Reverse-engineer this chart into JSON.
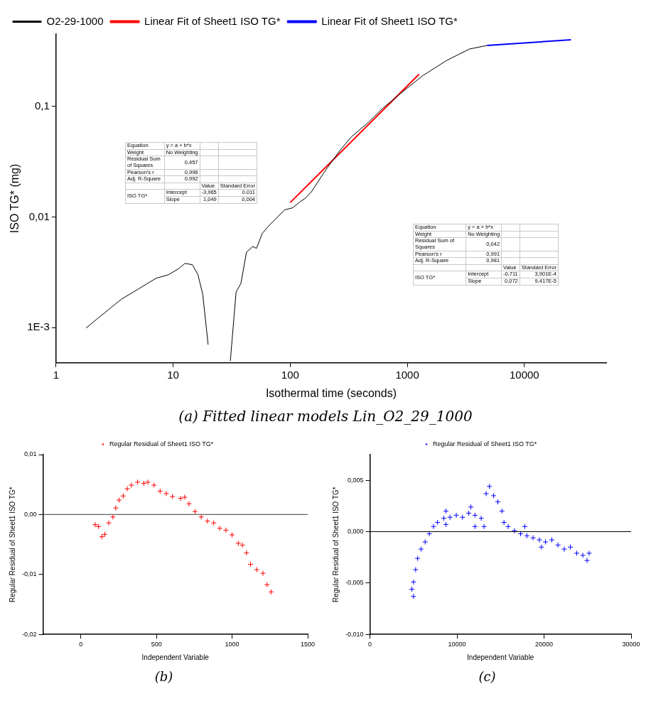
{
  "chart_data": [
    {
      "type": "line",
      "title": "(a) Fitted linear models Lin_O2_29_1000",
      "xlabel": "Isothermal time (seconds)",
      "ylabel": "ISO TG* (mg)",
      "log": "xy",
      "legend": "top left",
      "xlim": [
        1,
        50000
      ],
      "xticks": [
        1,
        10,
        100,
        1000,
        10000
      ],
      "ylim": [
        0.00048,
        0.45
      ],
      "yticks": [
        {
          "value": 0.001,
          "label": "1E-3"
        },
        {
          "value": 0.01,
          "label": "0,01"
        },
        {
          "value": 0.1,
          "label": "0,1"
        }
      ],
      "series": [
        {
          "name": "O2-29-1000",
          "color": "#000000",
          "x": [
            1.8,
            3.6,
            7.2,
            9.1,
            11.1,
            12.6,
            14.6,
            16.3,
            17.9,
            19.9,
            25,
            30.8,
            33.2,
            34.5,
            37.9,
            42.3,
            47.9,
            51.5,
            57.7,
            65.5,
            74.4,
            89.5,
            105,
            120,
            135,
            152,
            172,
            190,
            223,
            264,
            333,
            454,
            623,
            916,
            1360,
            2170,
            3400,
            4800
          ],
          "values": [
            0.00099,
            0.0018,
            0.0028,
            0.003,
            0.0034,
            0.0038,
            0.0037,
            0.003,
            0.002,
            0.0007,
            null,
            0.0005,
            0.0013,
            0.0021,
            0.0025,
            0.0048,
            0.0054,
            0.0052,
            0.0071,
            0.0083,
            0.0095,
            0.0116,
            0.0121,
            0.0136,
            0.0148,
            0.0169,
            0.0207,
            0.0243,
            0.031,
            0.0395,
            0.053,
            0.07,
            0.097,
            0.136,
            0.19,
            0.26,
            0.33,
            0.355
          ]
        },
        {
          "name": "Linear Fit of Sheet1 ISO TG*",
          "color": "#ff0000",
          "x": [
            100,
            1260
          ],
          "values": [
            0.0135,
            0.195
          ]
        },
        {
          "name": "Linear Fit of Sheet1 ISO TG*",
          "color": "#0000ff",
          "x": [
            4800,
            25000
          ],
          "values": [
            0.355,
            0.4
          ]
        }
      ],
      "annotations": [
        "Equation",
        "y = a + b*x",
        "Weight",
        "No Weighting",
        "Residual Sum of Squares",
        "0,457",
        "Pearson's r",
        "0,996",
        "Adj. R-Square",
        "0,992",
        "Value",
        "Standard Error",
        "ISO TG*",
        "Intercept",
        "-3,965",
        "0,011",
        "Slope",
        "1,049",
        "0,004",
        "Equation",
        "y = a + b*x",
        "Weight",
        "No Weighting",
        "Residual Sum of Squares",
        "0,042",
        "Pearson's r",
        "0,991",
        "Adj. R-Square",
        "0,981",
        "Value",
        "Standard Error",
        "ISO TG*",
        "Intercept",
        "-0,711",
        "3,901E-4",
        "Slope",
        "0,072",
        "9,417E-5"
      ]
    },
    {
      "type": "scatter",
      "title": "(b)",
      "xlabel": "Independent Variable",
      "ylabel": "Regular Residual of Sheet1 ISO TG*",
      "legend": "top",
      "marker": "cross",
      "xlim": [
        -250,
        1500
      ],
      "xticks": [
        0,
        500,
        1000,
        1500
      ],
      "ylim": [
        -0.02,
        0.01
      ],
      "yticks": [
        {
          "value": -0.02,
          "label": "-0,02"
        },
        {
          "value": -0.01,
          "label": "-0,01"
        },
        {
          "value": 0,
          "label": "0,00"
        },
        {
          "value": 0.01,
          "label": "0,01"
        }
      ],
      "ref_lines": [
        {
          "axis": "y",
          "value": 0,
          "color": "#606060"
        }
      ],
      "series": [
        {
          "name": "Regular Residual of Sheet1 ISO TG*",
          "color": "#ff0000",
          "x": [
            95,
            117,
            139,
            158,
            185,
            212,
            231,
            253,
            280,
            307,
            334,
            375,
            416,
            443,
            484,
            524,
            565,
            606,
            660,
            687,
            715,
            755,
            796,
            837,
            878,
            918,
            959,
            1000,
            1041,
            1068,
            1095,
            1122,
            1163,
            1204,
            1231,
            1258
          ],
          "values": [
            -0.0017,
            -0.002,
            -0.0037,
            -0.0033,
            -0.0014,
            -0.0004,
            0.0011,
            0.0024,
            0.0031,
            0.0043,
            0.0049,
            0.0054,
            0.0052,
            0.0054,
            0.0049,
            0.0039,
            0.0035,
            0.003,
            0.0027,
            0.0029,
            0.0018,
            0.0005,
            -0.0004,
            -0.0011,
            -0.0014,
            -0.0023,
            -0.0026,
            -0.0034,
            -0.0048,
            -0.0051,
            -0.0064,
            -0.0083,
            -0.0092,
            -0.0098,
            -0.0117,
            -0.0129
          ]
        }
      ]
    },
    {
      "type": "scatter",
      "title": "(c)",
      "xlabel": "Independent Variable",
      "ylabel": "Regular Residual of Sheet1 ISO TG*",
      "legend": "top",
      "marker": "cross",
      "xlim": [
        0,
        30000
      ],
      "xticks": [
        0,
        10000,
        20000,
        30000
      ],
      "ylim": [
        -0.01,
        0.0075
      ],
      "yticks": [
        {
          "value": -0.01,
          "label": "-0,010"
        },
        {
          "value": -0.005,
          "label": "-0,005"
        },
        {
          "value": 0,
          "label": "0,000"
        },
        {
          "value": 0.005,
          "label": "0,005"
        }
      ],
      "ref_lines": [
        {
          "axis": "y",
          "value": 0,
          "color": "#000000"
        }
      ],
      "series": [
        {
          "name": "Regular Residual of Sheet1 ISO TG*",
          "color": "#0000ff",
          "x": [
            4820,
            5000,
            5010,
            5250,
            5480,
            5870,
            6340,
            6820,
            7300,
            7770,
            8490,
            8730,
            8730,
            9200,
            9920,
            10630,
            11350,
            11590,
            12070,
            12070,
            12780,
            13110,
            13350,
            13730,
            14210,
            14690,
            15160,
            15400,
            15880,
            16600,
            17310,
            17790,
            18030,
            18740,
            19460,
            19700,
            20170,
            20890,
            21600,
            22320,
            23030,
            23750,
            24460,
            24940,
            25180
          ],
          "values": [
            -0.0056,
            -0.0063,
            -0.0049,
            -0.0037,
            -0.0026,
            -0.0017,
            -0.001,
            -0.0002,
            0.0005,
            0.0009,
            0.0013,
            0.002,
            0.0007,
            0.0014,
            0.0016,
            0.0014,
            0.0018,
            0.0024,
            0.0016,
            0.0005,
            0.0013,
            0.0005,
            0.0037,
            0.0044,
            0.0035,
            0.0029,
            0.002,
            0.0009,
            0.0005,
            0.0001,
            -0.0002,
            0.0005,
            -0.0004,
            -0.0006,
            -0.0008,
            -0.0015,
            -0.001,
            -0.0008,
            -0.0013,
            -0.0017,
            -0.0015,
            -0.0021,
            -0.0023,
            -0.0028,
            -0.0021
          ]
        }
      ]
    }
  ]
}
